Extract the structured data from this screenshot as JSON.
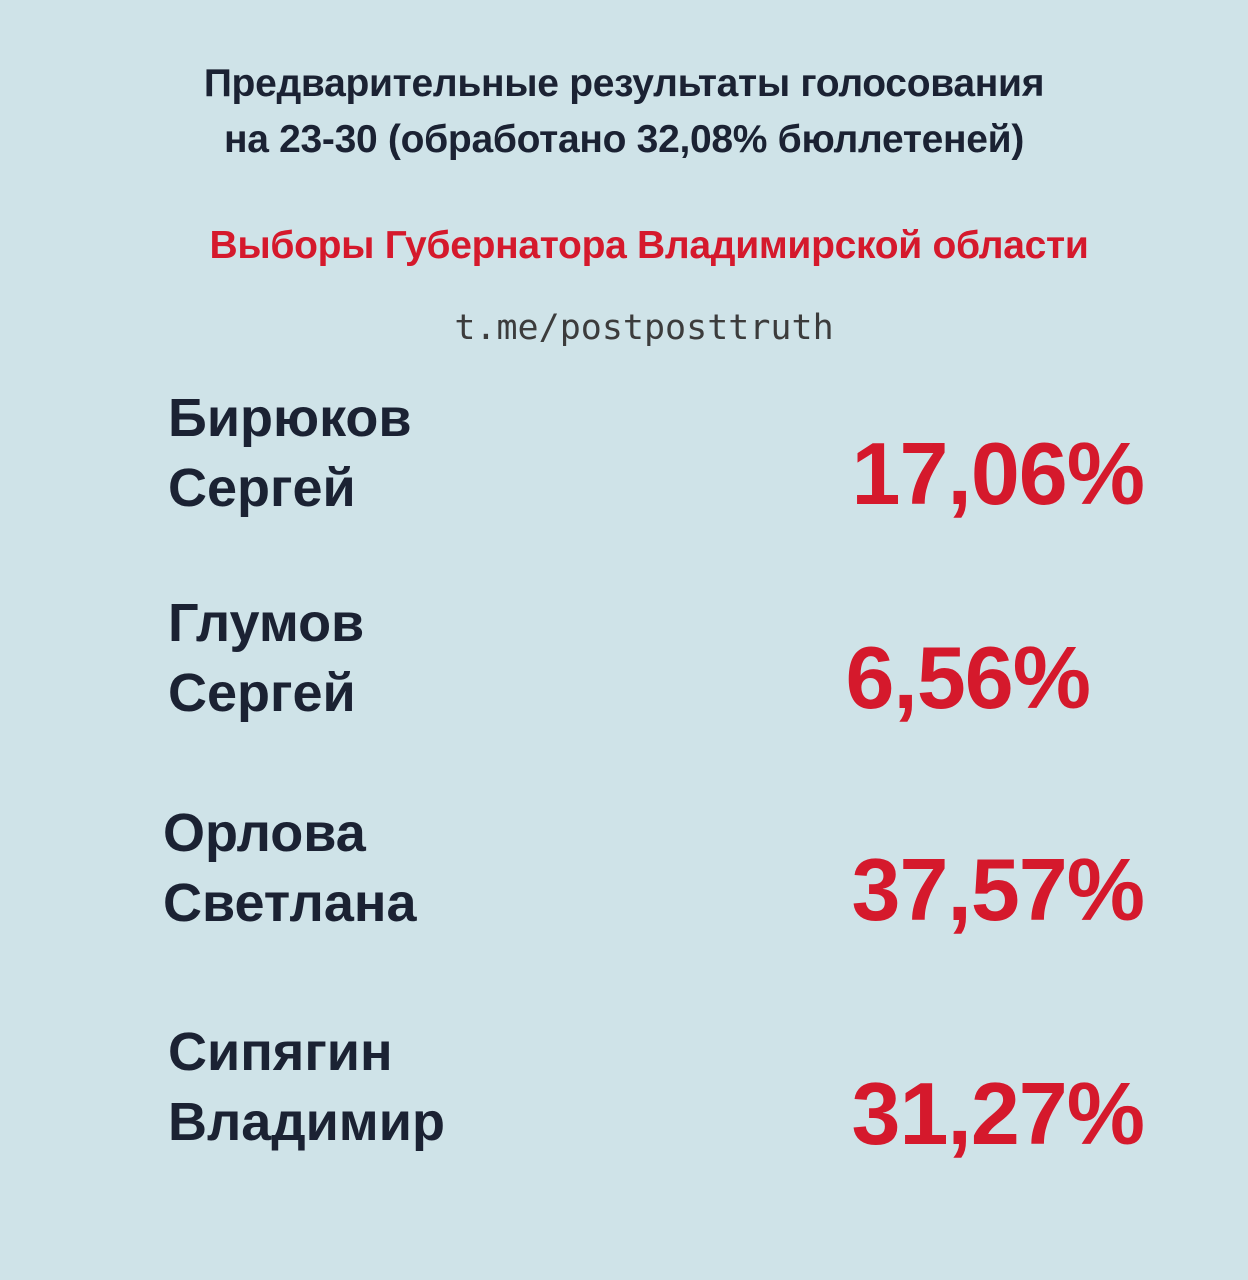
{
  "header": {
    "line1": "Предварительные результаты голосования",
    "line2": "на 23-30 (обработано 32,08% бюллетеней)"
  },
  "subtitle": "Выборы Губернатора Владимирской области",
  "source": "t.me/postposttruth",
  "candidates": [
    {
      "surname": "Бирюков",
      "first_name": "Сергей",
      "percent": "17,06%"
    },
    {
      "surname": "Глумов",
      "first_name": "Сергей",
      "percent": "6,56%"
    },
    {
      "surname": "Орлова",
      "first_name": "Светлана",
      "percent": "37,57%"
    },
    {
      "surname": "Сипягин",
      "first_name": "Владимир",
      "percent": "31,27%"
    }
  ],
  "colors": {
    "background": "#cfe3e8",
    "text_dark": "#1b2233",
    "accent_red": "#d5192c"
  }
}
